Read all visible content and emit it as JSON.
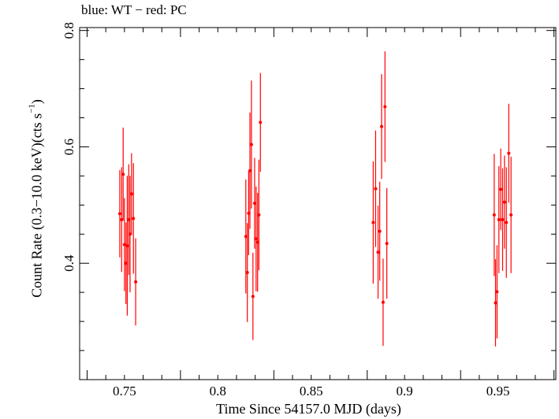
{
  "chart_data": {
    "type": "scatter",
    "title": "blue: WT − red: PC",
    "xlabel": "Time Since 54157.0 MJD (days)",
    "ylabel_main": "Count Rate (0.3−10.0 keV)(cts s",
    "ylabel_sup": "−1",
    "ylabel_close": ")",
    "xlim": [
      0.726,
      0.981
    ],
    "ylim": [
      0.2,
      0.805
    ],
    "x_ticks": [
      0.75,
      0.8,
      0.85,
      0.9,
      0.95
    ],
    "x_tick_labels": [
      "0.75",
      "0.8",
      "0.85",
      "0.9",
      "0.95"
    ],
    "y_ticks": [
      0.4,
      0.6,
      0.8
    ],
    "y_tick_labels": [
      "0.4",
      "0.6",
      "0.8"
    ],
    "grid": false,
    "series": [
      {
        "color": "#ff0000",
        "points": [
          {
            "x": 0.7475,
            "y": 0.485,
            "yerr": 0.075
          },
          {
            "x": 0.7485,
            "y": 0.475,
            "yerr": 0.09
          },
          {
            "x": 0.7493,
            "y": 0.553,
            "yerr": 0.08
          },
          {
            "x": 0.75,
            "y": 0.432,
            "yerr": 0.08
          },
          {
            "x": 0.7508,
            "y": 0.4,
            "yerr": 0.07
          },
          {
            "x": 0.7515,
            "y": 0.43,
            "yerr": 0.12
          },
          {
            "x": 0.7523,
            "y": 0.475,
            "yerr": 0.095
          },
          {
            "x": 0.753,
            "y": 0.45,
            "yerr": 0.1
          },
          {
            "x": 0.7538,
            "y": 0.519,
            "yerr": 0.07
          },
          {
            "x": 0.7548,
            "y": 0.477,
            "yerr": 0.095
          },
          {
            "x": 0.756,
            "y": 0.368,
            "yerr": 0.075
          },
          {
            "x": 0.815,
            "y": 0.446,
            "yerr": 0.098
          },
          {
            "x": 0.8158,
            "y": 0.384,
            "yerr": 0.085
          },
          {
            "x": 0.8165,
            "y": 0.486,
            "yerr": 0.072
          },
          {
            "x": 0.8172,
            "y": 0.559,
            "yerr": 0.1
          },
          {
            "x": 0.818,
            "y": 0.604,
            "yerr": 0.11
          },
          {
            "x": 0.8188,
            "y": 0.343,
            "yerr": 0.075
          },
          {
            "x": 0.8197,
            "y": 0.503,
            "yerr": 0.078
          },
          {
            "x": 0.8205,
            "y": 0.442,
            "yerr": 0.09
          },
          {
            "x": 0.8213,
            "y": 0.436,
            "yerr": 0.085
          },
          {
            "x": 0.822,
            "y": 0.483,
            "yerr": 0.095
          },
          {
            "x": 0.8228,
            "y": 0.642,
            "yerr": 0.085
          },
          {
            "x": 0.8832,
            "y": 0.47,
            "yerr": 0.105
          },
          {
            "x": 0.8845,
            "y": 0.528,
            "yerr": 0.1
          },
          {
            "x": 0.8858,
            "y": 0.419,
            "yerr": 0.08
          },
          {
            "x": 0.8867,
            "y": 0.455,
            "yerr": 0.085
          },
          {
            "x": 0.8877,
            "y": 0.635,
            "yerr": 0.09
          },
          {
            "x": 0.8885,
            "y": 0.333,
            "yerr": 0.075
          },
          {
            "x": 0.8895,
            "y": 0.669,
            "yerr": 0.095
          },
          {
            "x": 0.8905,
            "y": 0.434,
            "yerr": 0.095
          },
          {
            "x": 0.948,
            "y": 0.483,
            "yerr": 0.105
          },
          {
            "x": 0.9487,
            "y": 0.332,
            "yerr": 0.075
          },
          {
            "x": 0.9495,
            "y": 0.351,
            "yerr": 0.08
          },
          {
            "x": 0.9505,
            "y": 0.475,
            "yerr": 0.092
          },
          {
            "x": 0.9515,
            "y": 0.527,
            "yerr": 0.07
          },
          {
            "x": 0.9525,
            "y": 0.475,
            "yerr": 0.088
          },
          {
            "x": 0.9535,
            "y": 0.505,
            "yerr": 0.08
          },
          {
            "x": 0.9545,
            "y": 0.47,
            "yerr": 0.095
          },
          {
            "x": 0.9558,
            "y": 0.589,
            "yerr": 0.085
          },
          {
            "x": 0.957,
            "y": 0.483,
            "yerr": 0.1
          }
        ]
      }
    ]
  }
}
